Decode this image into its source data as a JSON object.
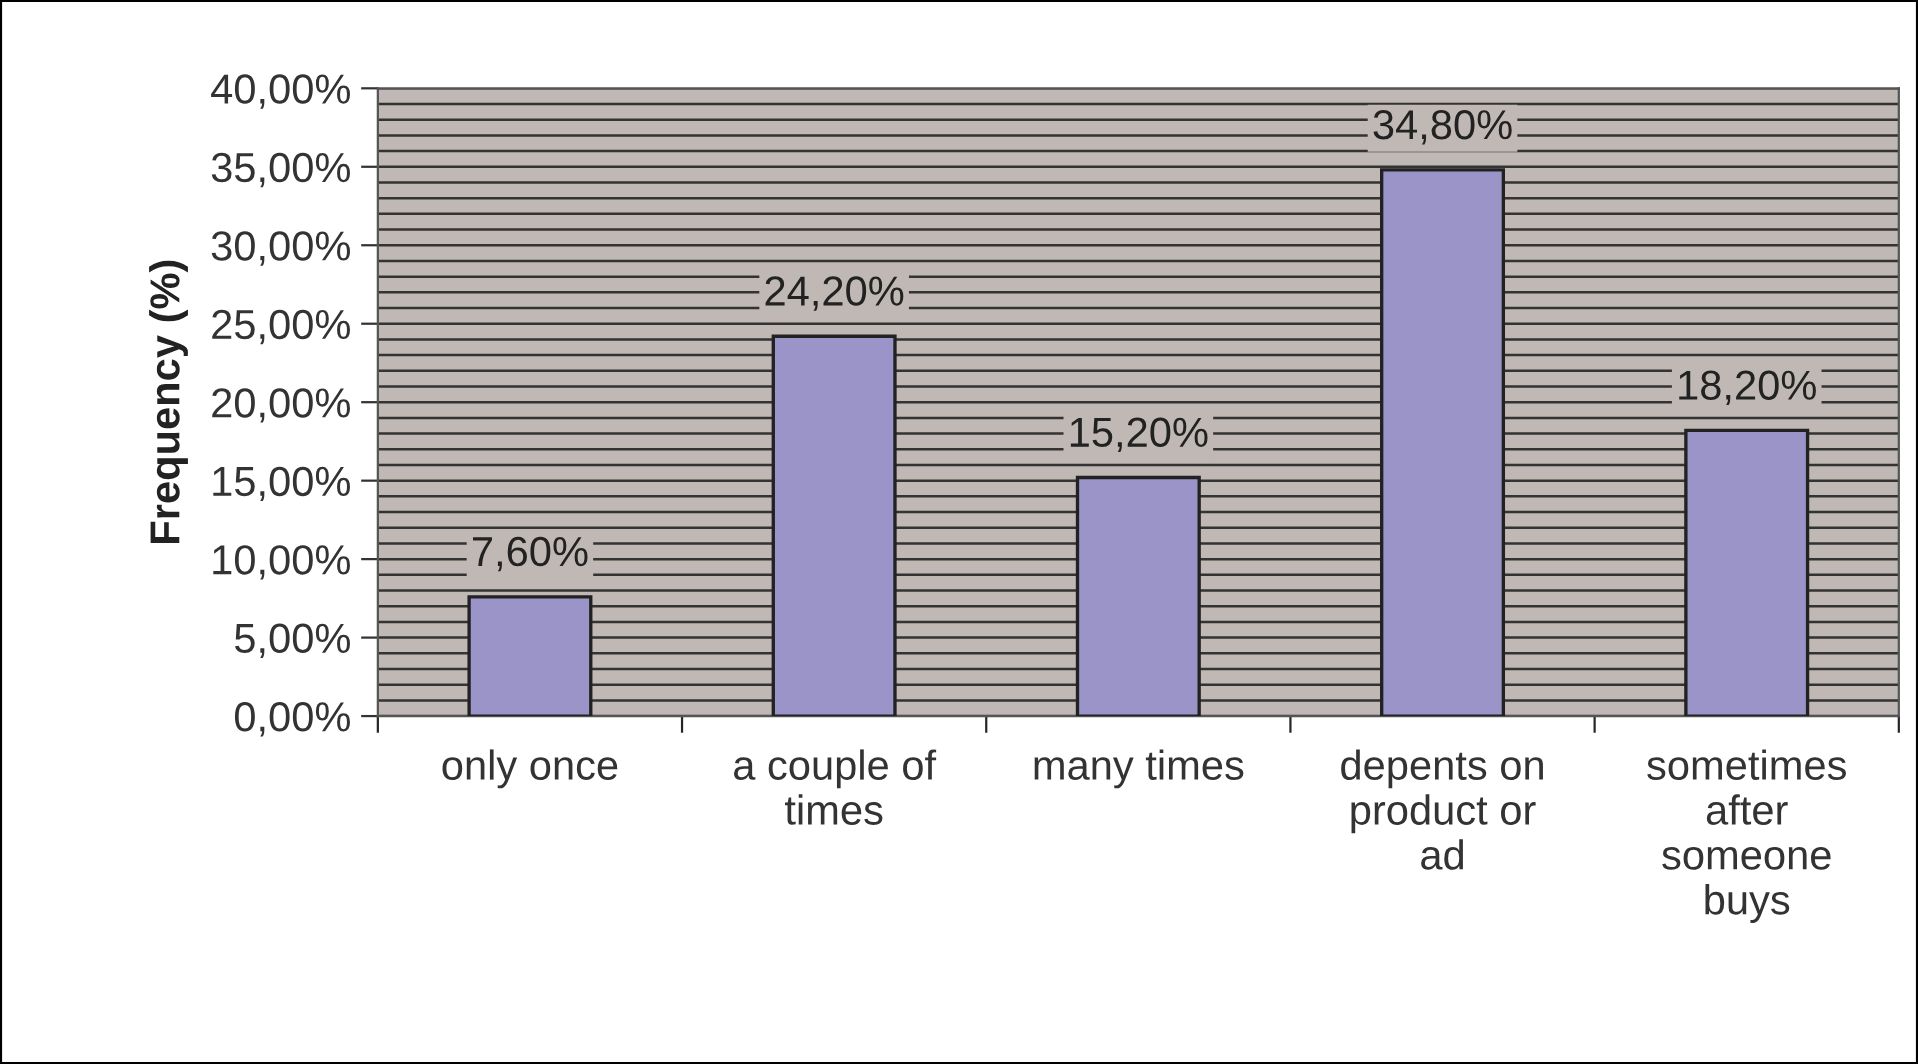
{
  "chart_data": {
    "type": "bar",
    "ylabel": "Frequency (%)",
    "categories": [
      "only once",
      "a couple of\ntimes",
      "many times",
      "depents on\nproduct or\nad",
      "sometimes\nafter\nsomeone\nbuys"
    ],
    "values": [
      7.6,
      24.2,
      15.2,
      34.8,
      18.2
    ],
    "value_labels": [
      "7,60%",
      "24,20%",
      "15,20%",
      "34,80%",
      "18,20%"
    ],
    "color": "#9a94c8",
    "ylim": [
      0,
      40
    ],
    "yticks": [
      {
        "value": 0,
        "label": "0,00%"
      },
      {
        "value": 1,
        "label": null
      },
      {
        "value": 2,
        "label": null
      },
      {
        "value": 3,
        "label": null
      },
      {
        "value": 4,
        "label": null
      },
      {
        "value": 5,
        "label": "5,00%"
      },
      {
        "value": 6,
        "label": null
      },
      {
        "value": 7,
        "label": null
      },
      {
        "value": 8,
        "label": null
      },
      {
        "value": 9,
        "label": null
      },
      {
        "value": 10,
        "label": "10,00%"
      },
      {
        "value": 11,
        "label": null
      },
      {
        "value": 12,
        "label": null
      },
      {
        "value": 13,
        "label": null
      },
      {
        "value": 14,
        "label": null
      },
      {
        "value": 15,
        "label": "15,00%"
      },
      {
        "value": 16,
        "label": null
      },
      {
        "value": 17,
        "label": null
      },
      {
        "value": 18,
        "label": null
      },
      {
        "value": 19,
        "label": null
      },
      {
        "value": 20,
        "label": "20,00%"
      },
      {
        "value": 21,
        "label": null
      },
      {
        "value": 22,
        "label": null
      },
      {
        "value": 23,
        "label": null
      },
      {
        "value": 24,
        "label": null
      },
      {
        "value": 25,
        "label": "25,00%"
      },
      {
        "value": 26,
        "label": null
      },
      {
        "value": 27,
        "label": null
      },
      {
        "value": 28,
        "label": null
      },
      {
        "value": 29,
        "label": null
      },
      {
        "value": 30,
        "label": "30,00%"
      },
      {
        "value": 31,
        "label": null
      },
      {
        "value": 32,
        "label": null
      },
      {
        "value": 33,
        "label": null
      },
      {
        "value": 34,
        "label": null
      },
      {
        "value": 35,
        "label": "35,00%"
      },
      {
        "value": 36,
        "label": null
      },
      {
        "value": 37,
        "label": null
      },
      {
        "value": 38,
        "label": null
      },
      {
        "value": 39,
        "label": null
      },
      {
        "value": 40,
        "label": "40,00%"
      }
    ],
    "grid": "y",
    "legend": false
  }
}
